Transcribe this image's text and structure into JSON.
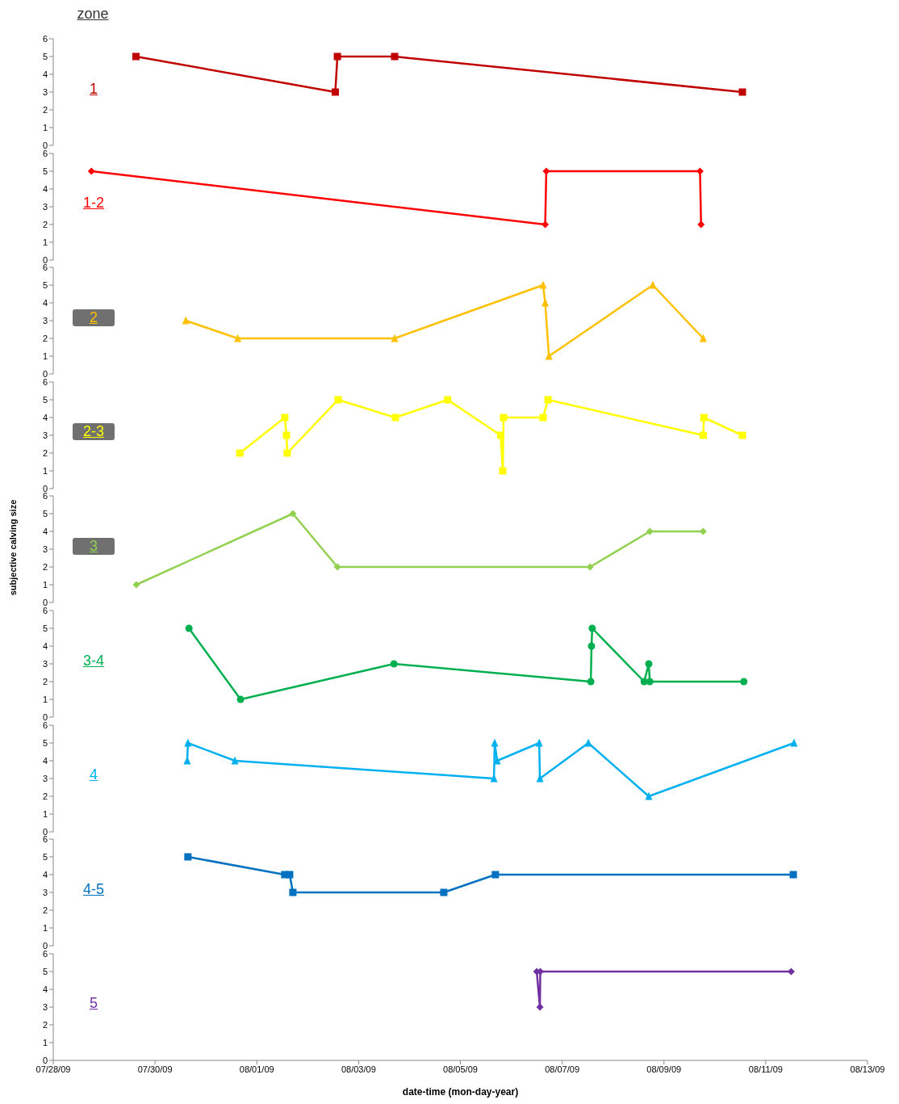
{
  "chart_data": [
    {
      "type": "line",
      "legend_title": "zone",
      "marker": "square",
      "tick_labels": "y",
      "xlim": [
        "--07-28",
        "--08-13"
      ],
      "ylim": [
        0,
        6
      ],
      "yticks": [
        0,
        1,
        2,
        3,
        4,
        5,
        6
      ],
      "series": [
        {
          "name": "1",
          "color": "#c00000",
          "x": [
            "--07-29T15:00",
            "--08-02T13:00",
            "--08-02T14:00",
            "--08-03T17:00",
            "--08-10T13:00"
          ],
          "values": [
            5,
            3,
            5,
            5,
            3
          ]
        }
      ]
    },
    {
      "type": "line",
      "marker": "diamond",
      "tick_labels": "y",
      "xlim": [
        "--07-28",
        "--08-13"
      ],
      "ylim": [
        0,
        6
      ],
      "yticks": [
        0,
        1,
        2,
        3,
        4,
        5,
        6
      ],
      "series": [
        {
          "name": "1-2",
          "color": "#ff0000",
          "x": [
            "--07-28T18:00",
            "--08-06T16:00",
            "--08-06T16:30",
            "--08-09T17:00",
            "--08-09T17:30"
          ],
          "values": [
            5,
            2,
            5,
            5,
            2
          ]
        }
      ]
    },
    {
      "type": "line",
      "marker": "triangle",
      "tick_labels": "y",
      "xlim": [
        "--07-28",
        "--08-13"
      ],
      "ylim": [
        0,
        6
      ],
      "yticks": [
        0,
        1,
        2,
        3,
        4,
        5,
        6
      ],
      "series": [
        {
          "name": "2",
          "color": "#ffc000",
          "x": [
            "--07-30T14:30",
            "--07-31T15:00",
            "--08-03T17:00",
            "--08-06T15:00",
            "--08-06T16:00",
            "--08-06T17:45",
            "--08-08T18:45",
            "--08-09T18:30"
          ],
          "values": [
            3,
            2,
            2,
            5,
            4,
            1,
            5,
            2
          ]
        }
      ]
    },
    {
      "type": "line",
      "marker": "square",
      "tick_labels": "y",
      "xlim": [
        "--07-28",
        "--08-13"
      ],
      "ylim": [
        0,
        6
      ],
      "yticks": [
        0,
        1,
        2,
        3,
        4,
        5,
        6
      ],
      "series": [
        {
          "name": "2-3",
          "color": "#ffff00",
          "x": [
            "--07-31T16:00",
            "--08-01T13:10",
            "--08-01T14:00",
            "--08-01T14:20",
            "--08-02T14:20",
            "--08-03T17:20",
            "--08-04T18:00",
            "--08-05T19:00",
            "--08-05T20:00",
            "--08-05T20:20",
            "--08-06T15:00",
            "--08-06T17:20",
            "--08-09T18:30",
            "--08-09T18:50",
            "--08-10T13:00"
          ],
          "values": [
            2,
            4,
            3,
            2,
            5,
            4,
            5,
            3,
            1,
            4,
            4,
            5,
            3,
            4,
            3
          ]
        }
      ]
    },
    {
      "type": "line",
      "ylabel": "subjective calving size",
      "marker": "diamond",
      "tick_labels": "y",
      "xlim": [
        "--07-28",
        "--08-13"
      ],
      "ylim": [
        0,
        6
      ],
      "yticks": [
        0,
        1,
        2,
        3,
        4,
        5,
        6
      ],
      "series": [
        {
          "name": "3",
          "color": "#92d050",
          "x": [
            "--07-29T15:10",
            "--08-01T17:00",
            "--08-02T14:00",
            "--08-07T13:10",
            "--08-08T17:20",
            "--08-09T18:30"
          ],
          "values": [
            1,
            5,
            2,
            2,
            4,
            4
          ]
        }
      ]
    },
    {
      "type": "line",
      "marker": "circle",
      "tick_labels": "y",
      "xlim": [
        "--07-28",
        "--08-13"
      ],
      "ylim": [
        0,
        6
      ],
      "yticks": [
        0,
        1,
        2,
        3,
        4,
        5,
        6
      ],
      "series": [
        {
          "name": "3-4",
          "color": "#00b050",
          "x": [
            "--07-30T16:00",
            "--07-31T16:20",
            "--08-03T16:40",
            "--08-07T13:30",
            "--08-07T13:50",
            "--08-07T14:10",
            "--08-08T14:40",
            "--08-08T16:50",
            "--08-08T17:20",
            "--08-10T13:40"
          ],
          "values": [
            5,
            1,
            3,
            2,
            4,
            5,
            2,
            3,
            2,
            2
          ]
        }
      ]
    },
    {
      "type": "line",
      "marker": "triangle",
      "tick_labels": "y",
      "xlim": [
        "--07-28",
        "--08-13"
      ],
      "ylim": [
        0,
        6
      ],
      "yticks": [
        0,
        1,
        2,
        3,
        4,
        5,
        6
      ],
      "series": [
        {
          "name": "4",
          "color": "#00b0f0",
          "x": [
            "--07-30T15:10",
            "--07-30T15:30",
            "--07-31T13:40",
            "--08-05T15:50",
            "--08-05T16:10",
            "--08-05T17:20",
            "--08-06T13:10",
            "--08-06T13:30",
            "--08-07T12:20",
            "--08-08T16:50",
            "--08-11T13:20"
          ],
          "values": [
            4,
            5,
            4,
            3,
            5,
            4,
            5,
            3,
            5,
            2,
            5
          ]
        }
      ]
    },
    {
      "type": "line",
      "marker": "square",
      "tick_labels": "y",
      "xlim": [
        "--07-28",
        "--08-13"
      ],
      "ylim": [
        0,
        6
      ],
      "yticks": [
        0,
        1,
        2,
        3,
        4,
        5,
        6
      ],
      "series": [
        {
          "name": "4-5",
          "color": "#0070c0",
          "x": [
            "--07-30T15:30",
            "--08-01T13:10",
            "--08-01T15:30",
            "--08-01T17:00",
            "--08-04T16:10",
            "--08-05T16:30",
            "--08-11T13:00"
          ],
          "values": [
            5,
            4,
            4,
            3,
            3,
            4,
            4
          ]
        }
      ]
    },
    {
      "type": "line",
      "xlabel": "date-time (mon-day-year)",
      "marker": "diamond",
      "xlim": [
        "--07-28",
        "--08-13"
      ],
      "ylim": [
        0,
        6
      ],
      "yticks": [
        0,
        1,
        2,
        3,
        4,
        5,
        6
      ],
      "xticks": [
        {
          "value": "--07-28",
          "label": "07/28/09"
        },
        {
          "value": "--07-30",
          "label": "07/30/09"
        },
        {
          "value": "--08-01",
          "label": "08/01/09"
        },
        {
          "value": "--08-03",
          "label": "08/03/09"
        },
        {
          "value": "--08-05",
          "label": "08/05/09"
        },
        {
          "value": "--08-07",
          "label": "08/07/09"
        },
        {
          "value": "--08-09",
          "label": "08/09/09"
        },
        {
          "value": "--08-11",
          "label": "08/11/09"
        },
        {
          "value": "--08-13",
          "label": "08/13/09"
        }
      ],
      "series": [
        {
          "name": "5",
          "color": "#7030a0",
          "x": [
            "--08-06T12:00",
            "--08-06T13:30",
            "--08-06T13:40",
            "--08-11T12:00"
          ],
          "values": [
            5,
            3,
            5,
            5
          ]
        }
      ]
    }
  ]
}
